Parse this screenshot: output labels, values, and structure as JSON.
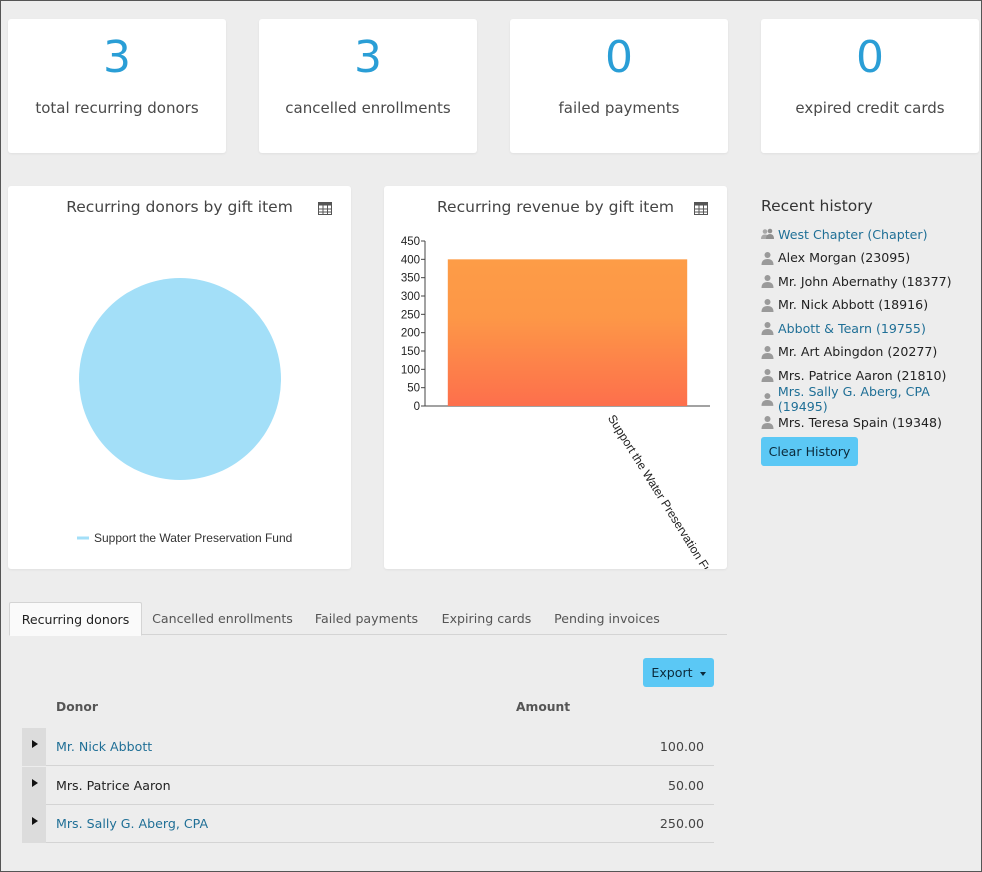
{
  "stats": [
    {
      "value": "3",
      "label": "total recurring donors"
    },
    {
      "value": "3",
      "label": "cancelled enrollments"
    },
    {
      "value": "0",
      "label": "failed payments"
    },
    {
      "value": "0",
      "label": "expired credit cards"
    }
  ],
  "colors": {
    "accent": "#2a9ed6",
    "button": "#5bc8f5",
    "pie": "#a3dff8",
    "bar_top": "#fd9c47",
    "bar_bottom": "#fd704c",
    "link": "#1f6f96"
  },
  "chart_data": [
    {
      "type": "pie",
      "title": "Recurring donors by gift item",
      "categories": [
        "Support the Water Preservation Fund"
      ],
      "values": [
        3
      ],
      "legend": [
        "Support the Water Preservation Fund"
      ]
    },
    {
      "type": "bar",
      "title": "Recurring revenue by gift item",
      "categories": [
        "Support the Water Preservation Fund"
      ],
      "values": [
        400
      ],
      "ylim": [
        0,
        450
      ],
      "yticks": [
        "0",
        "50",
        "100",
        "150",
        "200",
        "250",
        "300",
        "350",
        "400",
        "450"
      ]
    }
  ],
  "history": {
    "title": "Recent history",
    "items": [
      {
        "label": "West Chapter (Chapter)",
        "icon": "group-icon",
        "link": true
      },
      {
        "label": "Alex Morgan (23095)",
        "icon": "person-icon",
        "link": false
      },
      {
        "label": "Mr. John Abernathy (18377)",
        "icon": "person-icon",
        "link": false
      },
      {
        "label": "Mr. Nick Abbott (18916)",
        "icon": "person-icon",
        "link": false
      },
      {
        "label": "Abbott & Tearn (19755)",
        "icon": "person-icon",
        "link": true
      },
      {
        "label": "Mr. Art Abingdon (20277)",
        "icon": "person-icon",
        "link": false
      },
      {
        "label": "Mrs. Patrice Aaron (21810)",
        "icon": "person-icon",
        "link": false
      },
      {
        "label": "Mrs. Sally G. Aberg, CPA (19495)",
        "icon": "person-icon",
        "link": true
      },
      {
        "label": "Mrs. Teresa Spain (19348)",
        "icon": "person-icon",
        "link": false
      }
    ],
    "clear_label": "Clear History"
  },
  "tabs": [
    "Recurring donors",
    "Cancelled enrollments",
    "Failed payments",
    "Expiring cards",
    "Pending invoices"
  ],
  "table": {
    "export_label": "Export",
    "columns": [
      "Donor",
      "Amount"
    ],
    "rows": [
      {
        "donor": "Mr. Nick Abbott",
        "amount": "100.00",
        "link": true
      },
      {
        "donor": "Mrs. Patrice Aaron",
        "amount": "50.00",
        "link": false
      },
      {
        "donor": "Mrs. Sally G. Aberg, CPA",
        "amount": "250.00",
        "link": true
      }
    ]
  }
}
